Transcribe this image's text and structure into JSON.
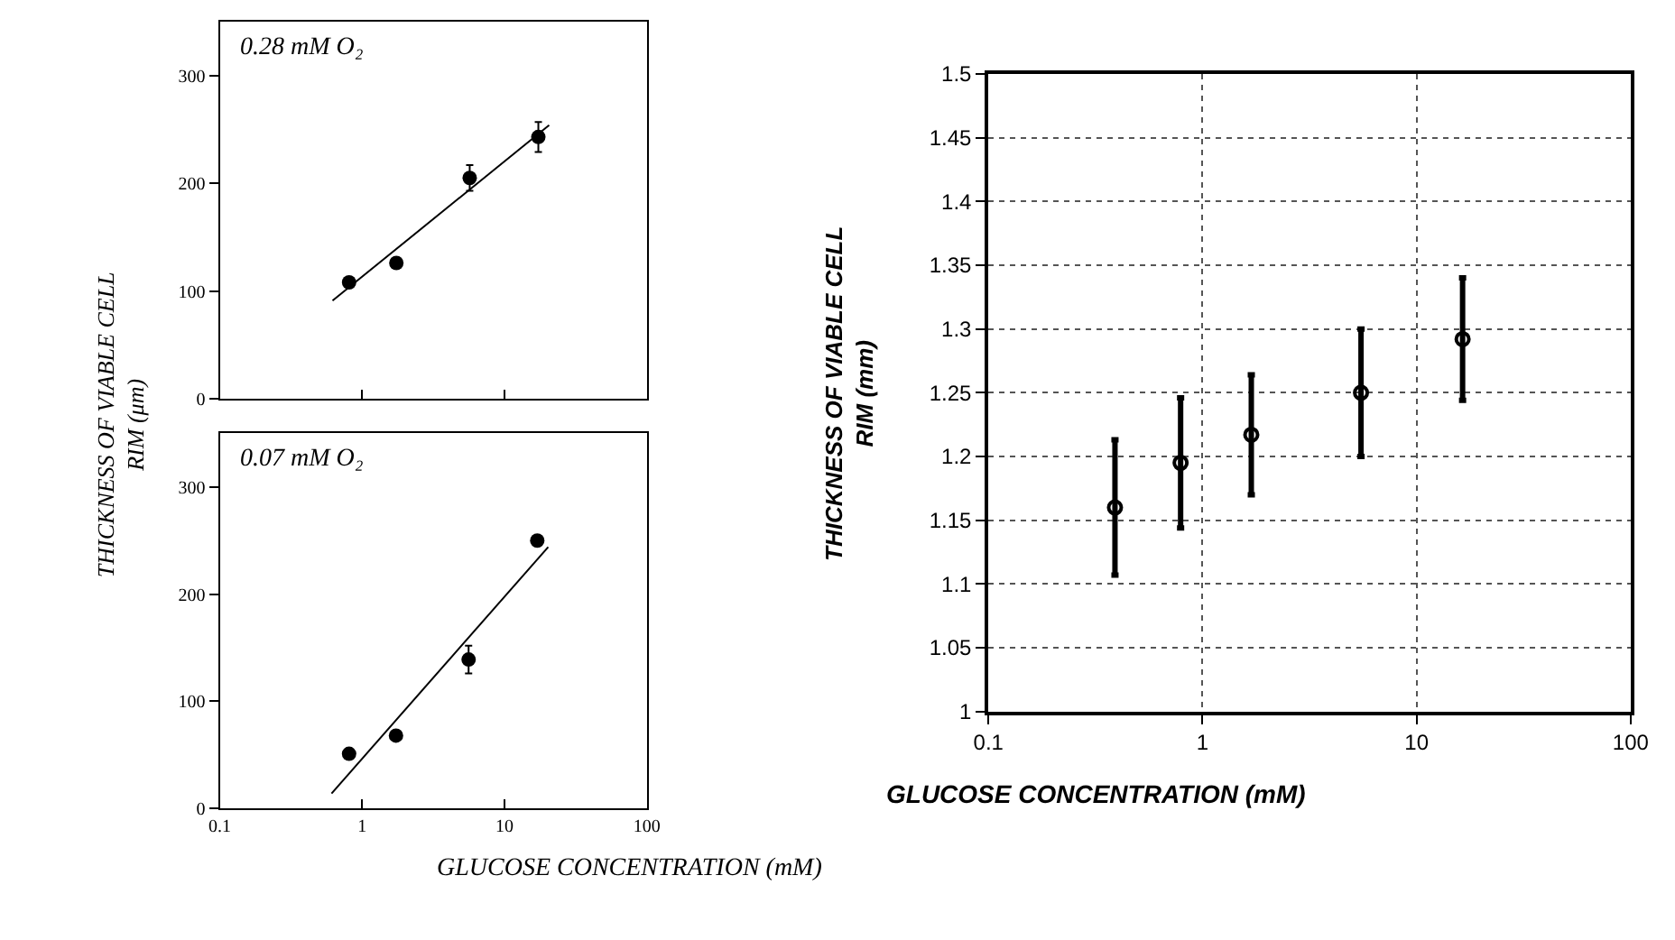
{
  "chart_data": [
    {
      "type": "scatter",
      "ylabel": "THICKNESS OF VIABLE CELL RIM (μm)",
      "annotations": [
        "0.28 mM O₂"
      ],
      "log": "x",
      "xlim": [
        0.1,
        100
      ],
      "xticks": [
        {
          "value": 0.1,
          "label": null
        },
        {
          "value": 1,
          "label": null
        },
        {
          "value": 10,
          "label": null
        },
        {
          "value": 100,
          "label": null
        }
      ],
      "ylim": [
        0,
        350
      ],
      "yticks": [
        0,
        100,
        200,
        300
      ],
      "tick_labels": "y",
      "grid": false,
      "marker": "circle",
      "series": [
        {
          "color": "#000000",
          "x": [
            0.81,
            1.74,
            5.7,
            17.3
          ],
          "values": [
            108,
            126,
            205,
            243
          ],
          "errors": [
            null,
            null,
            12,
            14
          ]
        },
        {
          "type": "line",
          "color": "#000000",
          "x": [
            0.62,
            20.6
          ],
          "values": [
            91,
            254
          ],
          "marker": "none"
        }
      ]
    },
    {
      "type": "scatter",
      "xlabel": "GLUCOSE CONCENTRATION (mM)",
      "annotations": [
        "0.07 mM O₂"
      ],
      "log": "x",
      "xlim": [
        0.1,
        100
      ],
      "xticks": [
        0.1,
        1,
        10,
        100
      ],
      "ylim": [
        0,
        350
      ],
      "yticks": [
        0,
        100,
        200,
        300
      ],
      "grid": false,
      "marker": "circle",
      "series": [
        {
          "color": "#000000",
          "x": [
            0.81,
            1.73,
            5.6,
            17
          ],
          "values": [
            51,
            68,
            139,
            250
          ],
          "errors": [
            null,
            null,
            13,
            null
          ]
        },
        {
          "type": "line",
          "color": "#000000",
          "x": [
            0.61,
            20.3
          ],
          "values": [
            14,
            244
          ],
          "marker": "none"
        }
      ]
    },
    {
      "type": "scatter",
      "xlabel": "GLUCOSE CONCENTRATION (mM)",
      "ylabel": "THICKNESS OF VIABLE CELL RIM (mm)",
      "log": "x",
      "xlim": [
        0.1,
        100
      ],
      "xticks": [
        0.1,
        1,
        10,
        100
      ],
      "ylim": [
        1,
        1.5
      ],
      "yticks": [
        1,
        1.05,
        1.1,
        1.15,
        1.2,
        1.25,
        1.3,
        1.35,
        1.4,
        1.45,
        1.5
      ],
      "grid": true,
      "marker": "circle",
      "series": [
        {
          "color": "#000000",
          "x": [
            0.39,
            0.79,
            1.69,
            5.5,
            16.4
          ],
          "values": [
            1.16,
            1.195,
            1.217,
            1.25,
            1.292
          ],
          "errors": [
            0.053,
            0.051,
            0.047,
            0.05,
            0.048
          ]
        }
      ]
    }
  ]
}
